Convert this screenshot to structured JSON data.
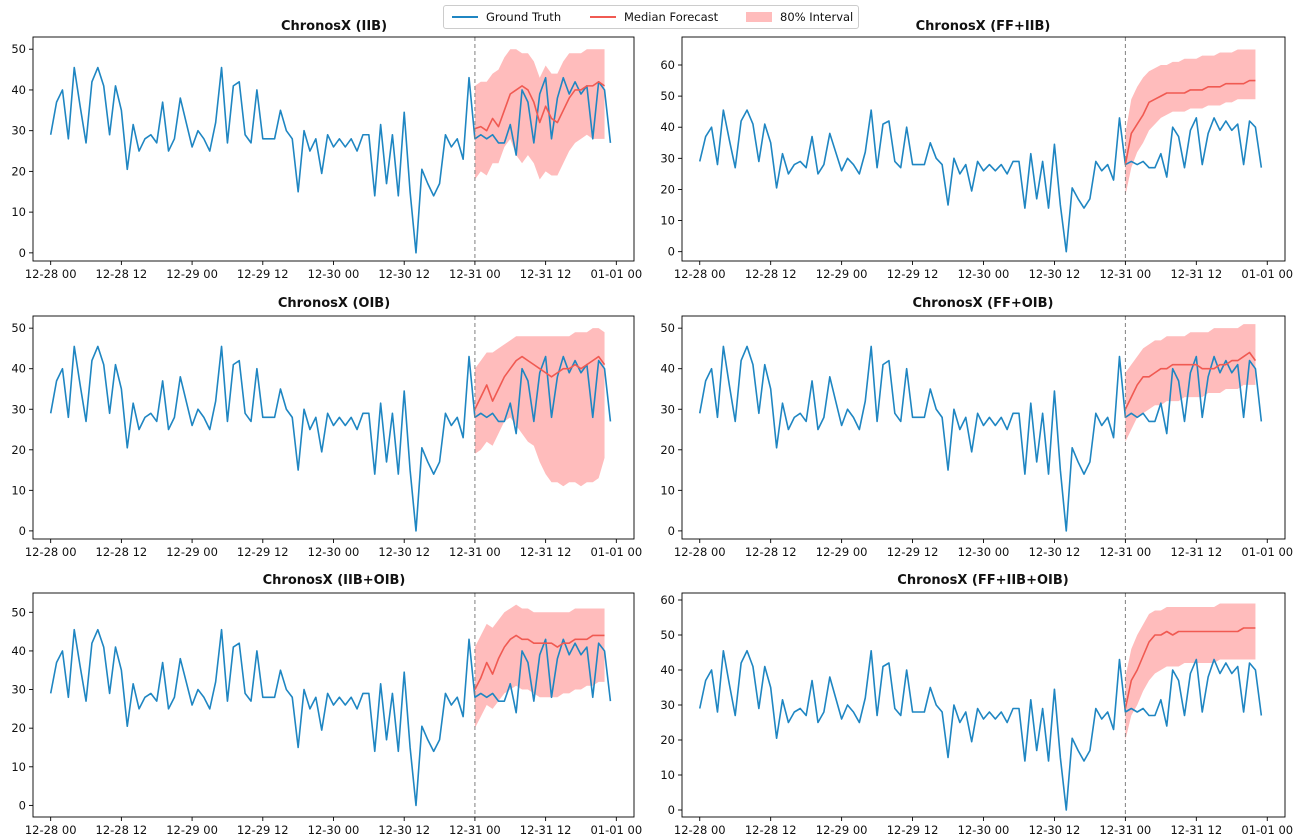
{
  "legend": {
    "ground_truth": "Ground Truth",
    "median_forecast": "Median Forecast",
    "interval": "80% Interval"
  },
  "colors": {
    "ground_truth": "#1f86c2",
    "median_forecast": "#f05a52",
    "interval": "#ffbcbc",
    "divider": "#808080"
  },
  "x_tick_labels": [
    "12-28 00",
    "12-28 12",
    "12-29 00",
    "12-29 12",
    "12-30 00",
    "12-30 12",
    "12-31 00",
    "12-31 12",
    "01-01 00"
  ],
  "chart_data": [
    {
      "title": "ChronosX (IIB)",
      "type": "line",
      "ylim": [
        -2,
        53
      ],
      "yticks": [
        0,
        10,
        20,
        30,
        40,
        50
      ],
      "median": [
        30.5,
        31,
        30,
        33,
        31,
        35,
        39,
        40,
        41,
        40,
        37,
        32,
        36,
        33,
        32,
        35,
        38,
        40,
        40,
        41,
        41,
        42,
        41
      ],
      "lower": [
        18,
        20,
        19,
        22,
        22,
        26,
        28,
        24,
        22,
        24,
        22,
        18,
        20,
        19,
        19,
        22,
        25,
        27,
        28,
        29,
        28,
        28,
        28
      ],
      "upper": [
        41,
        42,
        42,
        44,
        45,
        48,
        50,
        50,
        49,
        49,
        47,
        43,
        46,
        44,
        44,
        47,
        49,
        49,
        49,
        50,
        50,
        50,
        50
      ]
    },
    {
      "title": "ChronosX (FF+IIB)",
      "type": "line",
      "ylim": [
        -3,
        69
      ],
      "yticks": [
        0,
        10,
        20,
        30,
        40,
        50,
        60
      ],
      "median": [
        28,
        38,
        41,
        44,
        48,
        49,
        50,
        51,
        51,
        51,
        51,
        52,
        52,
        52,
        53,
        53,
        53,
        54,
        54,
        54,
        54,
        55,
        55
      ],
      "lower": [
        18,
        27,
        32,
        35,
        39,
        41,
        43,
        44,
        45,
        45,
        45,
        46,
        46,
        46,
        47,
        47,
        47,
        48,
        48,
        49,
        49,
        49,
        49
      ],
      "upper": [
        38,
        49,
        53,
        56,
        58,
        59,
        60,
        60,
        61,
        61,
        62,
        62,
        62,
        63,
        63,
        63,
        64,
        64,
        64,
        65,
        65,
        65,
        65
      ]
    },
    {
      "title": "ChronosX (OIB)",
      "type": "line",
      "ylim": [
        -2,
        53
      ],
      "yticks": [
        0,
        10,
        20,
        30,
        40,
        50
      ],
      "median": [
        30,
        33,
        36,
        32,
        35,
        38,
        40,
        42,
        43,
        42,
        41,
        40,
        39,
        38,
        39,
        40,
        40,
        41,
        40,
        41,
        42,
        43,
        41
      ],
      "lower": [
        19,
        20,
        22,
        21,
        24,
        27,
        28,
        26,
        24,
        22,
        21,
        17,
        14,
        12,
        12,
        11,
        12,
        12,
        11,
        12,
        12,
        13,
        18
      ],
      "upper": [
        40,
        42,
        44,
        44,
        45,
        46,
        47,
        48,
        48,
        48,
        48,
        48,
        48,
        48,
        48,
        48,
        48,
        49,
        49,
        49,
        50,
        50,
        49
      ],
      "note": "OIB"
    },
    {
      "title": "ChronosX (FF+OIB)",
      "type": "line",
      "ylim": [
        -2,
        53
      ],
      "yticks": [
        0,
        10,
        20,
        30,
        40,
        50
      ],
      "median": [
        30,
        33,
        36,
        38,
        38,
        39,
        40,
        40,
        41,
        41,
        41,
        41,
        41,
        40,
        40,
        40,
        41,
        41,
        42,
        42,
        43,
        44,
        42
      ],
      "lower": [
        22,
        25,
        28,
        29,
        30,
        31,
        31,
        32,
        32,
        32,
        33,
        33,
        33,
        33,
        34,
        34,
        34,
        35,
        35,
        35,
        36,
        36,
        36
      ],
      "upper": [
        39,
        41,
        43,
        45,
        46,
        47,
        47,
        48,
        48,
        48,
        48,
        49,
        49,
        49,
        49,
        50,
        50,
        50,
        50,
        50,
        51,
        51,
        51
      ]
    },
    {
      "title": "ChronosX (IIB+OIB)",
      "type": "line",
      "ylim": [
        -3,
        55
      ],
      "yticks": [
        0,
        10,
        20,
        30,
        40,
        50
      ],
      "median": [
        30,
        33,
        37,
        34,
        38,
        41,
        43,
        44,
        43,
        43,
        42,
        42,
        42,
        42,
        41,
        42,
        42,
        43,
        43,
        43,
        44,
        44,
        44
      ],
      "lower": [
        20,
        23,
        26,
        25,
        27,
        29,
        30,
        31,
        30,
        30,
        29,
        28,
        28,
        28,
        28,
        29,
        29,
        30,
        30,
        31,
        31,
        32,
        32
      ],
      "upper": [
        41,
        44,
        47,
        46,
        48,
        50,
        51,
        52,
        51,
        51,
        50,
        50,
        50,
        50,
        50,
        50,
        50,
        51,
        51,
        51,
        51,
        51,
        51
      ]
    },
    {
      "title": "ChronosX (FF+IIB+OIB)",
      "type": "line",
      "ylim": [
        -2,
        62
      ],
      "yticks": [
        0,
        10,
        20,
        30,
        40,
        50,
        60
      ],
      "median": [
        29,
        37,
        40,
        44,
        48,
        50,
        50,
        51,
        50,
        51,
        51,
        51,
        51,
        51,
        51,
        51,
        51,
        51,
        51,
        51,
        52,
        52,
        52
      ],
      "lower": [
        20,
        27,
        30,
        34,
        37,
        39,
        40,
        41,
        41,
        41,
        42,
        42,
        42,
        42,
        42,
        42,
        43,
        43,
        43,
        43,
        43,
        43,
        43
      ],
      "upper": [
        38,
        46,
        50,
        53,
        56,
        57,
        57,
        58,
        58,
        58,
        58,
        58,
        58,
        58,
        58,
        58,
        59,
        59,
        59,
        59,
        59,
        59,
        59
      ]
    }
  ],
  "ground_truth": [
    29,
    37,
    40,
    28,
    45.5,
    36,
    27,
    42,
    45.5,
    41,
    29,
    41,
    35,
    20.5,
    31.5,
    25,
    28,
    29,
    27,
    37,
    25,
    28,
    38,
    32,
    26,
    30,
    28,
    25,
    32,
    45.5,
    27,
    41,
    42,
    29,
    27,
    40,
    28,
    28,
    28,
    35,
    30,
    28,
    15,
    30,
    25,
    28,
    19.5,
    29,
    26,
    28,
    26,
    28,
    25,
    29,
    29,
    14,
    31.5,
    17,
    29,
    14,
    34.5,
    15,
    0,
    20.5,
    17,
    14,
    17,
    29,
    26,
    28,
    23,
    43,
    28,
    29,
    28,
    29,
    27,
    27,
    31.5,
    24,
    40,
    37,
    27,
    39,
    43,
    28,
    38,
    43,
    39,
    42,
    39,
    41,
    28,
    42,
    40,
    27
  ]
}
